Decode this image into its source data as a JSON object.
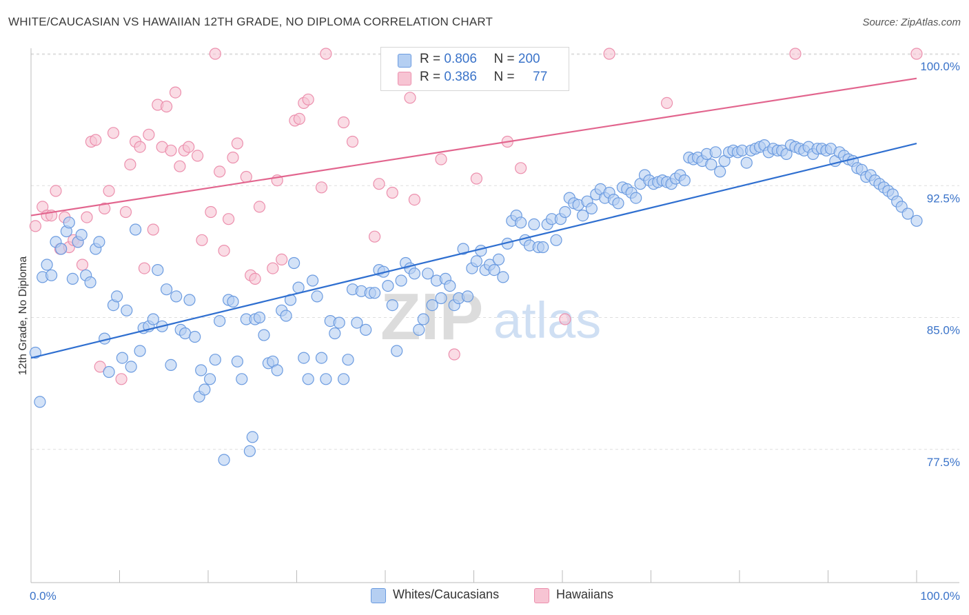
{
  "title": "WHITE/CAUCASIAN VS HAWAIIAN 12TH GRADE, NO DIPLOMA CORRELATION CHART",
  "source": "Source: ZipAtlas.com",
  "watermark": {
    "zip": "ZIP",
    "atlas": "atlas"
  },
  "legend_stats": {
    "rows": [
      {
        "r_label": "R =",
        "r_value": "0.806",
        "n_label": "N =",
        "n_value": "200"
      },
      {
        "r_label": "R =",
        "r_value": "0.386",
        "n_label": "N =",
        "n_value": "77"
      }
    ]
  },
  "legend_bottom": [
    {
      "label": "Whites/Caucasians"
    },
    {
      "label": "Hawaiians"
    }
  ],
  "colors": {
    "blue_fill": "#b5cff2",
    "blue_stroke": "#6b9be0",
    "blue_line": "#2f6fd0",
    "pink_fill": "#f7c4d3",
    "pink_stroke": "#ec8fad",
    "pink_line": "#e2658e",
    "tick_text": "#3a73c9",
    "grid": "#dddddd"
  },
  "chart_data": {
    "type": "scatter",
    "title": "WHITE/CAUCASIAN VS HAWAIIAN 12TH GRADE, NO DIPLOMA CORRELATION CHART",
    "xlabel": "",
    "ylabel": "12th Grade, No Diploma",
    "xlim": [
      0,
      100
    ],
    "ylim": [
      70,
      100.7
    ],
    "x_tick_labels": [
      "0.0%",
      "100.0%"
    ],
    "y_ticks": [
      77.5,
      85.0,
      92.5,
      100.0
    ],
    "y_tick_labels": [
      "77.5%",
      "85.0%",
      "92.5%",
      "100.0%"
    ],
    "grid": true,
    "legend_placement": "bottom",
    "series": [
      {
        "name": "Whites/Caucasians",
        "r": 0.806,
        "n": 200,
        "trend": {
          "x": [
            0,
            100
          ],
          "y": [
            82.7,
            94.9
          ]
        },
        "points": [
          [
            0.5,
            83
          ],
          [
            1,
            80.2
          ],
          [
            1.3,
            87.3
          ],
          [
            1.8,
            88
          ],
          [
            2.3,
            87.4
          ],
          [
            2.8,
            89.3
          ],
          [
            3.4,
            88.9
          ],
          [
            4,
            89.9
          ],
          [
            4.3,
            90.4
          ],
          [
            4.7,
            87.2
          ],
          [
            5.3,
            89.3
          ],
          [
            5.7,
            89.7
          ],
          [
            6.2,
            87.4
          ],
          [
            6.7,
            87
          ],
          [
            7.3,
            88.9
          ],
          [
            7.7,
            89.3
          ],
          [
            8.3,
            83.8
          ],
          [
            8.8,
            81.9
          ],
          [
            9.3,
            85.7
          ],
          [
            9.7,
            86.2
          ],
          [
            10.3,
            82.7
          ],
          [
            10.8,
            85.4
          ],
          [
            11.3,
            82.2
          ],
          [
            11.8,
            90
          ],
          [
            12.3,
            83.1
          ],
          [
            12.7,
            84.4
          ],
          [
            13.3,
            84.5
          ],
          [
            13.8,
            84.9
          ],
          [
            14.3,
            87.7
          ],
          [
            14.8,
            84.5
          ],
          [
            15.3,
            86.6
          ],
          [
            15.8,
            82.3
          ],
          [
            16.4,
            86.2
          ],
          [
            16.9,
            84.3
          ],
          [
            17.4,
            84.1
          ],
          [
            17.9,
            86
          ],
          [
            18.5,
            83.9
          ],
          [
            19,
            80.5
          ],
          [
            19.2,
            82
          ],
          [
            19.6,
            80.9
          ],
          [
            20.2,
            81.5
          ],
          [
            20.8,
            82.6
          ],
          [
            21.3,
            84.8
          ],
          [
            21.8,
            76.9
          ],
          [
            22.3,
            86
          ],
          [
            22.8,
            85.9
          ],
          [
            23.3,
            82.5
          ],
          [
            23.8,
            81.5
          ],
          [
            24.3,
            84.9
          ],
          [
            25,
            78.2
          ],
          [
            24.7,
            77.4
          ],
          [
            25.3,
            84.9
          ],
          [
            25.8,
            85
          ],
          [
            26.3,
            84
          ],
          [
            26.8,
            82.4
          ],
          [
            27.3,
            82.5
          ],
          [
            27.8,
            82
          ],
          [
            28.3,
            85.4
          ],
          [
            28.8,
            85.1
          ],
          [
            29.3,
            86
          ],
          [
            29.7,
            88.1
          ],
          [
            30.2,
            86.7
          ],
          [
            30.8,
            82.7
          ],
          [
            31.3,
            81.5
          ],
          [
            31.8,
            87.1
          ],
          [
            32.3,
            86.2
          ],
          [
            32.8,
            82.7
          ],
          [
            33.3,
            81.5
          ],
          [
            33.8,
            84.8
          ],
          [
            34.3,
            84.1
          ],
          [
            34.8,
            84.7
          ],
          [
            35.3,
            81.5
          ],
          [
            35.8,
            82.6
          ],
          [
            36.3,
            86.6
          ],
          [
            36.8,
            84.7
          ],
          [
            37.3,
            86.5
          ],
          [
            37.8,
            84.3
          ],
          [
            38.3,
            86.4
          ],
          [
            38.8,
            86.4
          ],
          [
            39.3,
            87.7
          ],
          [
            39.8,
            87.6
          ],
          [
            40.3,
            86.8
          ],
          [
            40.8,
            85.7
          ],
          [
            41.3,
            83.1
          ],
          [
            41.8,
            87.1
          ],
          [
            42.3,
            88.1
          ],
          [
            42.8,
            87.8
          ],
          [
            43.3,
            87.5
          ],
          [
            43.8,
            84.3
          ],
          [
            44.3,
            84.9
          ],
          [
            44.8,
            87.5
          ],
          [
            45.3,
            85.7
          ],
          [
            45.8,
            87.1
          ],
          [
            46.3,
            86.1
          ],
          [
            46.8,
            87.2
          ],
          [
            47.3,
            86.8
          ],
          [
            47.8,
            85.7
          ],
          [
            48.3,
            86.1
          ],
          [
            48.8,
            88.9
          ],
          [
            49.3,
            86.2
          ],
          [
            49.8,
            87.8
          ],
          [
            50.3,
            88.2
          ],
          [
            50.8,
            88.8
          ],
          [
            51.3,
            87.7
          ],
          [
            51.8,
            88
          ],
          [
            52.3,
            87.7
          ],
          [
            52.8,
            88.3
          ],
          [
            53.3,
            87.3
          ],
          [
            53.8,
            89.2
          ],
          [
            54.3,
            90.5
          ],
          [
            54.8,
            90.8
          ],
          [
            55.3,
            90.4
          ],
          [
            55.8,
            89.4
          ],
          [
            56.3,
            89.1
          ],
          [
            56.8,
            90.3
          ],
          [
            57.3,
            89
          ],
          [
            57.8,
            89
          ],
          [
            58.3,
            90.3
          ],
          [
            58.8,
            90.6
          ],
          [
            59.3,
            89.4
          ],
          [
            59.8,
            90.6
          ],
          [
            60.3,
            91
          ],
          [
            60.8,
            91.8
          ],
          [
            61.3,
            91.5
          ],
          [
            61.8,
            91.4
          ],
          [
            62.3,
            90.8
          ],
          [
            62.8,
            91.6
          ],
          [
            63.3,
            91.2
          ],
          [
            63.8,
            92
          ],
          [
            64.3,
            92.3
          ],
          [
            64.8,
            91.8
          ],
          [
            65.3,
            92.1
          ],
          [
            65.8,
            91.7
          ],
          [
            66.3,
            91.5
          ],
          [
            66.8,
            92.4
          ],
          [
            67.3,
            92.3
          ],
          [
            67.8,
            92.1
          ],
          [
            68.3,
            91.8
          ],
          [
            68.8,
            92.6
          ],
          [
            69.3,
            93.1
          ],
          [
            69.8,
            92.8
          ],
          [
            70.3,
            92.6
          ],
          [
            70.8,
            92.7
          ],
          [
            71.3,
            92.8
          ],
          [
            71.8,
            92.7
          ],
          [
            72.3,
            92.6
          ],
          [
            72.8,
            92.9
          ],
          [
            73.3,
            93.1
          ],
          [
            73.8,
            92.8
          ],
          [
            74.3,
            94.1
          ],
          [
            74.8,
            94
          ],
          [
            75.3,
            94.1
          ],
          [
            75.8,
            93.9
          ],
          [
            76.3,
            94.3
          ],
          [
            76.8,
            93.7
          ],
          [
            77.3,
            94.4
          ],
          [
            77.8,
            93.3
          ],
          [
            78.3,
            93.9
          ],
          [
            78.8,
            94.4
          ],
          [
            79.3,
            94.5
          ],
          [
            79.8,
            94.4
          ],
          [
            80.3,
            94.5
          ],
          [
            80.8,
            93.8
          ],
          [
            81.3,
            94.5
          ],
          [
            81.8,
            94.6
          ],
          [
            82.3,
            94.7
          ],
          [
            82.8,
            94.8
          ],
          [
            83.3,
            94.4
          ],
          [
            83.8,
            94.6
          ],
          [
            84.3,
            94.5
          ],
          [
            84.8,
            94.5
          ],
          [
            85.3,
            94.3
          ],
          [
            85.8,
            94.8
          ],
          [
            86.3,
            94.7
          ],
          [
            86.8,
            94.6
          ],
          [
            87.3,
            94.5
          ],
          [
            87.8,
            94.7
          ],
          [
            88.3,
            94.3
          ],
          [
            88.8,
            94.6
          ],
          [
            89.3,
            94.6
          ],
          [
            89.8,
            94.5
          ],
          [
            90.3,
            94.6
          ],
          [
            90.8,
            93.9
          ],
          [
            91.3,
            94.4
          ],
          [
            91.8,
            94.2
          ],
          [
            92.3,
            94
          ],
          [
            92.8,
            93.9
          ],
          [
            93.3,
            93.5
          ],
          [
            93.8,
            93.4
          ],
          [
            94.3,
            93
          ],
          [
            94.8,
            93.1
          ],
          [
            95.3,
            92.8
          ],
          [
            95.8,
            92.6
          ],
          [
            96.3,
            92.4
          ],
          [
            96.8,
            92.2
          ],
          [
            97.3,
            92
          ],
          [
            97.8,
            91.6
          ],
          [
            98.3,
            91.3
          ],
          [
            99,
            90.9
          ],
          [
            100,
            90.5
          ]
        ]
      },
      {
        "name": "Hawaiians",
        "r": 0.386,
        "n": 77,
        "trend": {
          "x": [
            0,
            100
          ],
          "y": [
            90.8,
            98.6
          ]
        },
        "points": [
          [
            0.5,
            90.2
          ],
          [
            1.3,
            91.3
          ],
          [
            1.8,
            90.8
          ],
          [
            2.3,
            90.8
          ],
          [
            2.8,
            92.2
          ],
          [
            3.3,
            88.9
          ],
          [
            3.8,
            90.7
          ],
          [
            4.3,
            89
          ],
          [
            4.8,
            89.4
          ],
          [
            5.3,
            89.3
          ],
          [
            5.8,
            88
          ],
          [
            6.3,
            90.7
          ],
          [
            6.8,
            95
          ],
          [
            7.3,
            95.1
          ],
          [
            7.8,
            82.2
          ],
          [
            8.3,
            91.2
          ],
          [
            8.8,
            92.2
          ],
          [
            9.3,
            95.5
          ],
          [
            10.2,
            81.5
          ],
          [
            10.7,
            91
          ],
          [
            11.2,
            93.7
          ],
          [
            11.8,
            95
          ],
          [
            12.3,
            94.7
          ],
          [
            12.8,
            87.8
          ],
          [
            13.3,
            95.4
          ],
          [
            13.8,
            90
          ],
          [
            14.3,
            97.1
          ],
          [
            14.8,
            94.7
          ],
          [
            15.3,
            97
          ],
          [
            15.8,
            94.5
          ],
          [
            16.3,
            97.8
          ],
          [
            16.8,
            93.6
          ],
          [
            17.3,
            94.5
          ],
          [
            17.8,
            94.7
          ],
          [
            18.8,
            94.2
          ],
          [
            19.3,
            89.4
          ],
          [
            20.3,
            91
          ],
          [
            20.8,
            100
          ],
          [
            21.3,
            93.3
          ],
          [
            21.8,
            88.8
          ],
          [
            22.3,
            90.6
          ],
          [
            22.8,
            94.1
          ],
          [
            23.3,
            94.9
          ],
          [
            24.3,
            93
          ],
          [
            24.8,
            87.4
          ],
          [
            25.3,
            87.2
          ],
          [
            25.8,
            91.3
          ],
          [
            27.3,
            87.8
          ],
          [
            27.8,
            92.8
          ],
          [
            28.3,
            88.3
          ],
          [
            29.8,
            96.2
          ],
          [
            30.3,
            96.3
          ],
          [
            30.8,
            97.2
          ],
          [
            31.3,
            97.4
          ],
          [
            32.8,
            92.4
          ],
          [
            33.3,
            100
          ],
          [
            35.3,
            96.1
          ],
          [
            36.3,
            95
          ],
          [
            38.8,
            89.6
          ],
          [
            39.3,
            92.6
          ],
          [
            40.8,
            92.1
          ],
          [
            42.8,
            97.5
          ],
          [
            43.3,
            91.7
          ],
          [
            46.3,
            94
          ],
          [
            47.8,
            82.9
          ],
          [
            49.8,
            98.3
          ],
          [
            50.3,
            92.9
          ],
          [
            53.8,
            95
          ],
          [
            55.3,
            93.5
          ],
          [
            60.3,
            84.9
          ],
          [
            65.3,
            100
          ],
          [
            71.8,
            97.2
          ],
          [
            86.3,
            100
          ],
          [
            100,
            100
          ]
        ]
      }
    ]
  }
}
